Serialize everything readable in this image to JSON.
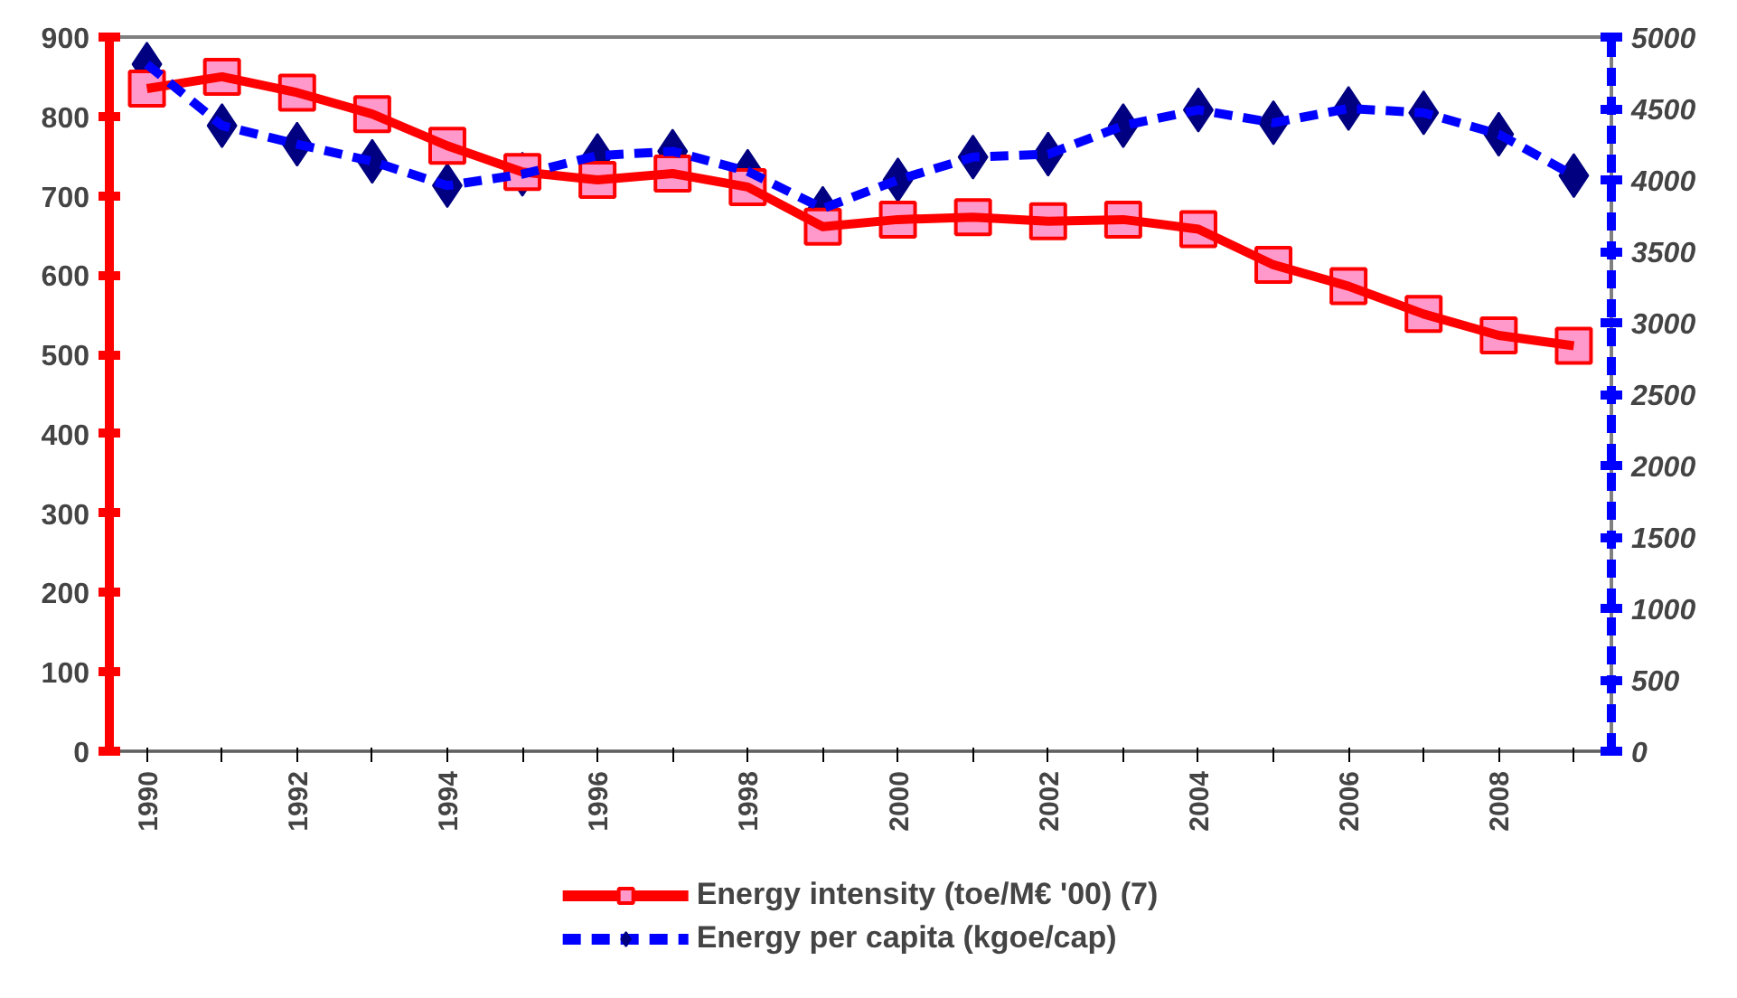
{
  "chart_data": {
    "type": "line",
    "categories": [
      "1990",
      null,
      "1992",
      null,
      "1994",
      null,
      "1996",
      null,
      "1998",
      null,
      "2000",
      null,
      "2002",
      null,
      "2004",
      null,
      "2006",
      null,
      "2008",
      null
    ],
    "series": [
      {
        "name": "Energy intensity (toe/M€ '00) (7)",
        "color": "#ff0000",
        "marker": "square",
        "line_style": "solid",
        "values": [
          835,
          850,
          830,
          803,
          763,
          730,
          720,
          728,
          711,
          661,
          670,
          673,
          668,
          670,
          658,
          613,
          586,
          551,
          524,
          511
        ]
      },
      {
        "name": "Energy per capita (kgoe/cap)",
        "color": "#0000ff",
        "marker": "diamond",
        "line_style": "dashed",
        "axis": "y2",
        "values": [
          4810,
          4380,
          4250,
          4130,
          3960,
          4040,
          4170,
          4200,
          4060,
          3800,
          4000,
          4160,
          4180,
          4380,
          4490,
          4400,
          4500,
          4470,
          4320,
          4030
        ]
      }
    ],
    "ylim": [
      0,
      900
    ],
    "yticks": [
      0,
      100,
      200,
      300,
      400,
      500,
      600,
      700,
      800,
      900
    ],
    "y2lim": [
      0,
      5000
    ],
    "y2ticks": [
      0,
      500,
      1000,
      1500,
      2000,
      2500,
      3000,
      3500,
      4000,
      4500,
      5000
    ],
    "grid": false,
    "legend": "bottom"
  }
}
